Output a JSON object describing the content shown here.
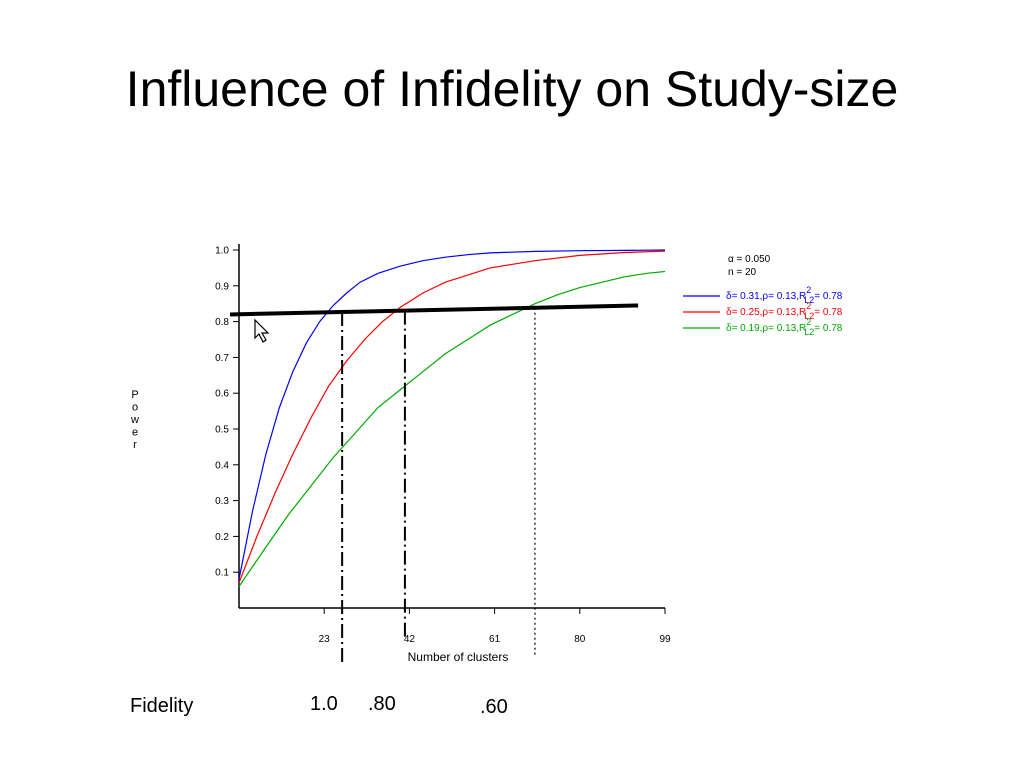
{
  "slide": {
    "title": "Influence of Infidelity on Study-size",
    "fidelity_label": "Fidelity",
    "fidelity_values": [
      "1.0",
      ".80",
      ".60"
    ]
  },
  "chart_data": {
    "type": "line",
    "xlabel": "Number of clusters",
    "ylabel": "Power",
    "xlim": [
      4,
      99
    ],
    "ylim": [
      0,
      1.0
    ],
    "x_ticks": [
      23,
      42,
      61,
      80,
      99
    ],
    "y_ticks": [
      0.1,
      0.2,
      0.3,
      0.4,
      0.5,
      0.6,
      0.7,
      0.8,
      0.9,
      1.0
    ],
    "legend": {
      "header": [
        "α = 0.050",
        "n = 20"
      ],
      "entries": [
        {
          "text": "δ= 0.31,ρ= 0.13,R",
          "sup": "2",
          "sub": "L2",
          "tail": "= 0.78",
          "color": "#0000ff"
        },
        {
          "text": "δ= 0.25,ρ= 0.13,R",
          "sup": "2",
          "sub": "L2",
          "tail": "= 0.78",
          "color": "#ff0000"
        },
        {
          "text": "δ= 0.19,ρ= 0.13,R",
          "sup": "2",
          "sub": "L2",
          "tail": "= 0.78",
          "color": "#00aa00"
        }
      ],
      "placement": "right"
    },
    "series": [
      {
        "color": "#0000ff",
        "x": [
          4,
          7,
          10,
          13,
          16,
          19,
          22,
          25,
          28,
          31,
          35,
          40,
          45,
          50,
          55,
          60,
          70,
          80,
          90,
          99
        ],
        "y": [
          0.08,
          0.27,
          0.43,
          0.56,
          0.66,
          0.74,
          0.8,
          0.845,
          0.88,
          0.91,
          0.935,
          0.955,
          0.97,
          0.98,
          0.987,
          0.992,
          0.996,
          0.998,
          0.999,
          1.0
        ]
      },
      {
        "color": "#ff0000",
        "x": [
          4,
          8,
          12,
          16,
          20,
          24,
          28,
          32,
          36,
          40,
          45,
          50,
          55,
          60,
          65,
          70,
          80,
          90,
          99
        ],
        "y": [
          0.07,
          0.2,
          0.32,
          0.43,
          0.53,
          0.62,
          0.69,
          0.75,
          0.8,
          0.84,
          0.88,
          0.91,
          0.93,
          0.95,
          0.96,
          0.97,
          0.985,
          0.993,
          0.997
        ]
      },
      {
        "color": "#00aa00",
        "x": [
          4,
          10,
          15,
          20,
          25,
          30,
          35,
          40,
          45,
          50,
          55,
          60,
          65,
          70,
          75,
          80,
          85,
          90,
          95,
          99
        ],
        "y": [
          0.06,
          0.17,
          0.26,
          0.34,
          0.42,
          0.49,
          0.56,
          0.61,
          0.66,
          0.71,
          0.75,
          0.79,
          0.82,
          0.85,
          0.875,
          0.895,
          0.91,
          0.925,
          0.935,
          0.94
        ]
      }
    ],
    "annotations": {
      "target_line": {
        "from": [
          2,
          0.82
        ],
        "to": [
          93,
          0.845
        ],
        "color": "#000000"
      },
      "vertical_markers": [
        {
          "x": 27,
          "style": "dash-dot"
        },
        {
          "x": 41,
          "style": "dash-dot"
        },
        {
          "x": 70,
          "style": "dotted"
        }
      ]
    }
  }
}
